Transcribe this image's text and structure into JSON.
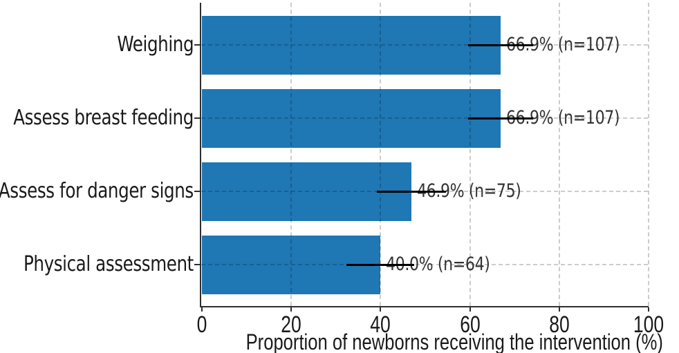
{
  "figure": {
    "background": "#ffffff",
    "axis_color": "#2e2e2e",
    "text_color": "#1a1a1a",
    "value_label_color": "#333333"
  },
  "chart_data": {
    "type": "bar",
    "orientation": "horizontal",
    "title": "",
    "xlabel": "Proportion of newborns receiving the intervention (%)",
    "ylabel": "",
    "categories": [
      "Weighing",
      "Assess breast feeding",
      "Assess for danger signs",
      "Physical assessment"
    ],
    "values": [
      66.9,
      66.9,
      46.9,
      40.0
    ],
    "counts": [
      107,
      107,
      75,
      64
    ],
    "bar_labels": [
      "66.9% (n=107)",
      "66.9% (n=107)",
      "46.9% (n=75)",
      "40.0% (n=64)"
    ],
    "error_margins": [
      7.3,
      7.3,
      7.7,
      7.6
    ],
    "xlim": [
      0,
      100
    ],
    "xticks": [
      0,
      20,
      40,
      60,
      80,
      100
    ],
    "xtick_labels": [
      "0",
      "20",
      "40",
      "60",
      "80",
      "100"
    ],
    "bar_color": "#1f77b4",
    "error_bar_color": "#000000",
    "grid": "dashed-both-axes",
    "legend": null
  }
}
